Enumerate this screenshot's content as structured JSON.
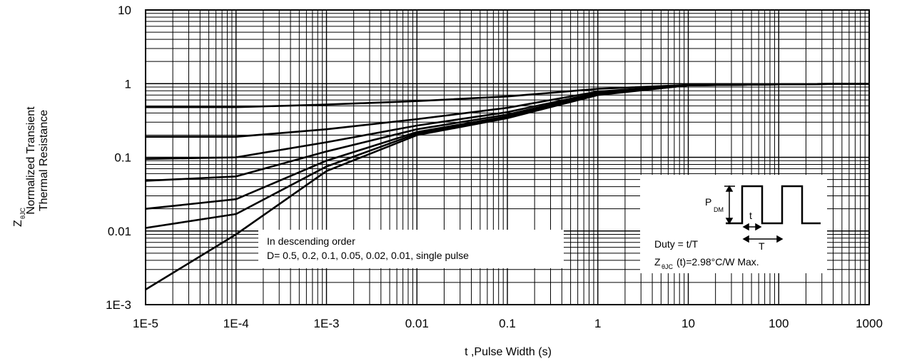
{
  "chart_data": {
    "type": "line",
    "x_scale": "log",
    "y_scale": "log",
    "xlim": [
      1e-05,
      1000
    ],
    "ylim": [
      0.001,
      10
    ],
    "grid": true,
    "xlabel": "t ,Pulse Width (s)",
    "ylabel_main": "Z",
    "ylabel_sub": "θJC",
    "ylabel_line1": "Normalized Transient",
    "ylabel_line2": "Thermal Resistance",
    "x_ticks": [
      {
        "value": 1e-05,
        "label": "1E-5"
      },
      {
        "value": 0.0001,
        "label": "1E-4"
      },
      {
        "value": 0.001,
        "label": "1E-3"
      },
      {
        "value": 0.01,
        "label": "0.01"
      },
      {
        "value": 0.1,
        "label": "0.1"
      },
      {
        "value": 1,
        "label": "1"
      },
      {
        "value": 10,
        "label": "10"
      },
      {
        "value": 100,
        "label": "100"
      },
      {
        "value": 1000,
        "label": "1000"
      }
    ],
    "y_ticks": [
      {
        "value": 0.001,
        "label": "1E-3"
      },
      {
        "value": 0.01,
        "label": "0.01"
      },
      {
        "value": 0.1,
        "label": "0.1"
      },
      {
        "value": 1,
        "label": "1"
      },
      {
        "value": 10,
        "label": "10"
      }
    ],
    "series": [
      {
        "name": "",
        "x": [
          1e-05,
          0.0001,
          0.001,
          0.01,
          0.1,
          1,
          10,
          100,
          1000
        ],
        "y": [
          0.48,
          0.48,
          0.52,
          0.58,
          0.67,
          0.85,
          0.96,
          0.98,
          1.0
        ]
      },
      {
        "name": "",
        "x": [
          1e-05,
          0.0001,
          0.001,
          0.01,
          0.1,
          1,
          10,
          100,
          1000
        ],
        "y": [
          0.19,
          0.19,
          0.24,
          0.33,
          0.47,
          0.78,
          0.95,
          0.98,
          1.0
        ]
      },
      {
        "name": "",
        "x": [
          1e-05,
          0.0001,
          0.001,
          0.01,
          0.1,
          1,
          10,
          100,
          1000
        ],
        "y": [
          0.095,
          0.1,
          0.16,
          0.27,
          0.41,
          0.75,
          0.95,
          0.98,
          1.0
        ]
      },
      {
        "name": "",
        "x": [
          1e-05,
          0.0001,
          0.001,
          0.01,
          0.1,
          1,
          10,
          100,
          1000
        ],
        "y": [
          0.048,
          0.055,
          0.12,
          0.24,
          0.38,
          0.73,
          0.95,
          0.98,
          1.0
        ]
      },
      {
        "name": "",
        "x": [
          1e-05,
          0.0001,
          0.001,
          0.01,
          0.1,
          1,
          10,
          100,
          1000
        ],
        "y": [
          0.02,
          0.027,
          0.09,
          0.22,
          0.36,
          0.72,
          0.95,
          0.98,
          1.0
        ]
      },
      {
        "name": "",
        "x": [
          1e-05,
          0.0001,
          0.001,
          0.01,
          0.1,
          1,
          10,
          100,
          1000
        ],
        "y": [
          0.011,
          0.017,
          0.075,
          0.21,
          0.35,
          0.71,
          0.95,
          0.98,
          1.0
        ]
      },
      {
        "name": "",
        "x": [
          1e-05,
          0.0001,
          0.001,
          0.01,
          0.1,
          1,
          10,
          100,
          1000
        ],
        "y": [
          0.0016,
          0.009,
          0.065,
          0.2,
          0.34,
          0.7,
          0.95,
          0.98,
          1.0
        ]
      }
    ],
    "annotations": {
      "order_note_line1": "In descending order",
      "order_note_line2": "D= 0.5, 0.2, 0.1, 0.05, 0.02, 0.01, single pulse",
      "duty_text": "Duty = t/T",
      "zth_main": "Z",
      "zth_sub": "θJC",
      "zth_rest": "(t)=2.98°C/W Max.",
      "pdm_main": "P",
      "pdm_sub": "DM",
      "t_label": "t",
      "T_label": "T"
    }
  }
}
